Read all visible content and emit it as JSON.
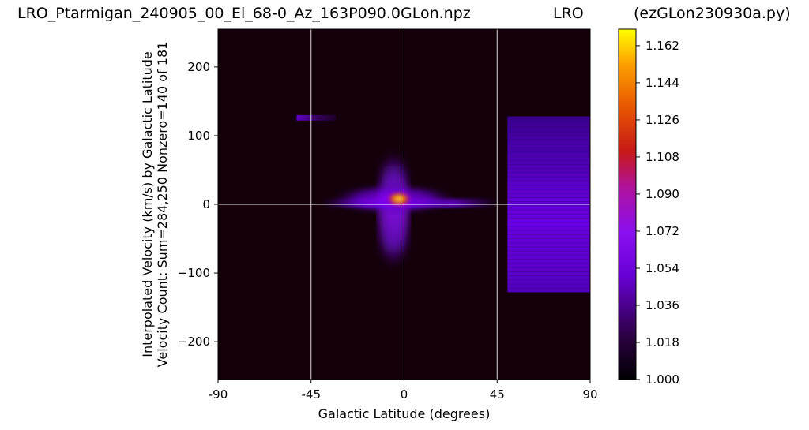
{
  "header": {
    "left": "LRO_Ptarmigan_240905_00_El_68-0_Az_163P090.0GLon.npz",
    "middle": "LRO",
    "right": "(ezGLon230930a.py)"
  },
  "chart_data": {
    "type": "heatmap",
    "xlabel": "Galactic Latitude (degrees)",
    "ylabel_lines": [
      "Interpolated Velocity (km/s) by Galactic Latitude",
      "Velocity Count: Sum=284,250 Nonzero=140 of 181"
    ],
    "xlim": [
      -90,
      90
    ],
    "ylim": [
      -255,
      255
    ],
    "x_ticks": [
      -90,
      -45,
      0,
      45,
      90
    ],
    "x_tick_labels": [
      "-90",
      "-45",
      "0",
      "45",
      "90"
    ],
    "y_ticks": [
      -200,
      -100,
      0,
      100,
      200
    ],
    "y_tick_labels": [
      "−200",
      "−100",
      "0",
      "100",
      "200"
    ],
    "reference_lines": {
      "vertical_x": [
        -45,
        0,
        45
      ],
      "horizontal_y": [
        0
      ],
      "color": "#ffffff"
    },
    "colormap": "gnuplot",
    "colorbar": {
      "min": 1.0,
      "max": 1.17,
      "ticks": [
        1.0,
        1.018,
        1.036,
        1.054,
        1.072,
        1.09,
        1.108,
        1.126,
        1.144,
        1.162
      ],
      "tick_labels": [
        "1.000",
        "1.018",
        "1.036",
        "1.054",
        "1.072",
        "1.090",
        "1.108",
        "1.126",
        "1.144",
        "1.162"
      ]
    },
    "regions": [
      {
        "name": "central-core",
        "x": [
          -8,
          3
        ],
        "y": [
          -2,
          18
        ],
        "value": 1.16
      },
      {
        "name": "central-inner",
        "x": [
          -15,
          10
        ],
        "y": [
          -8,
          25
        ],
        "value": 1.09
      },
      {
        "name": "central-halo",
        "x": [
          -35,
          25
        ],
        "y": [
          -15,
          30
        ],
        "value": 1.05
      },
      {
        "name": "central-vertical-extent",
        "x": [
          -12,
          2
        ],
        "y": [
          -90,
          75
        ],
        "value": 1.04
      },
      {
        "name": "ridge-along-zero",
        "x": [
          -40,
          45
        ],
        "y": [
          -5,
          8
        ],
        "value": 1.03
      },
      {
        "name": "upper-streak",
        "x": [
          -52,
          -33
        ],
        "y": [
          122,
          130
        ],
        "value": 1.03
      },
      {
        "name": "right-block",
        "x": [
          50,
          90
        ],
        "y": [
          -128,
          128
        ],
        "value": 1.03
      }
    ]
  }
}
